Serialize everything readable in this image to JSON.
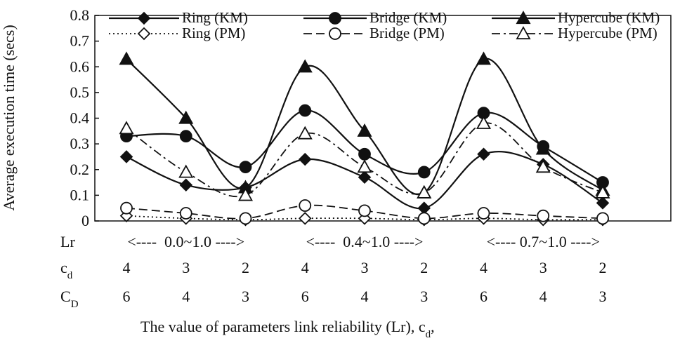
{
  "chart_data": {
    "type": "line",
    "ylabel": "Average execution time (secs)",
    "xlabel": "The value of parameters link reliability (Lr), c",
    "xlabel_subscript": "d",
    "xlabel_suffix": ",",
    "ylim": [
      0,
      0.8
    ],
    "yticks": [
      "0",
      "0.1",
      "0.2",
      "0.3",
      "0.4",
      "0.5",
      "0.6",
      "0.7",
      "0.8"
    ],
    "x": [
      1,
      2,
      3,
      4,
      5,
      6,
      7,
      8,
      9
    ],
    "row_labels": {
      "lr": "Lr",
      "cd_main": "c",
      "cd_sub": "d",
      "CD_main": "C",
      "CD_sub": "D"
    },
    "lr_ranges": [
      "<----  0.0~1.0 ---->",
      "<----  0.4~1.0 ---->",
      "<---- 0.7~1.0 ---->"
    ],
    "cd_values": [
      "4",
      "3",
      "2",
      "4",
      "3",
      "2",
      "4",
      "3",
      "2"
    ],
    "CD_values": [
      "6",
      "4",
      "3",
      "6",
      "4",
      "3",
      "6",
      "4",
      "3"
    ],
    "series": [
      {
        "name": "Ring (KM)",
        "marker": "diamond",
        "filled": true,
        "dash": "solid",
        "values": [
          0.25,
          0.14,
          0.13,
          0.24,
          0.17,
          0.05,
          0.26,
          0.22,
          0.07
        ]
      },
      {
        "name": "Bridge (KM)",
        "marker": "circle",
        "filled": true,
        "dash": "solid",
        "values": [
          0.33,
          0.33,
          0.21,
          0.43,
          0.26,
          0.19,
          0.42,
          0.29,
          0.15
        ]
      },
      {
        "name": "Hypercube (KM)",
        "marker": "triangle",
        "filled": true,
        "dash": "solid",
        "values": [
          0.63,
          0.4,
          0.13,
          0.6,
          0.35,
          0.11,
          0.63,
          0.28,
          0.12
        ]
      },
      {
        "name": "Ring (PM)",
        "marker": "diamond",
        "filled": false,
        "dash": "dotted",
        "values": [
          0.02,
          0.01,
          0.005,
          0.01,
          0.01,
          0.005,
          0.01,
          0.005,
          0.005
        ]
      },
      {
        "name": "Bridge (PM)",
        "marker": "circle",
        "filled": false,
        "dash": "dashed",
        "values": [
          0.05,
          0.03,
          0.01,
          0.06,
          0.04,
          0.01,
          0.03,
          0.02,
          0.01
        ]
      },
      {
        "name": "Hypercube (PM)",
        "marker": "triangle",
        "filled": false,
        "dash": "dashdot",
        "values": [
          0.36,
          0.19,
          0.1,
          0.34,
          0.21,
          0.11,
          0.38,
          0.21,
          0.11
        ]
      }
    ],
    "legend_position": "top"
  }
}
